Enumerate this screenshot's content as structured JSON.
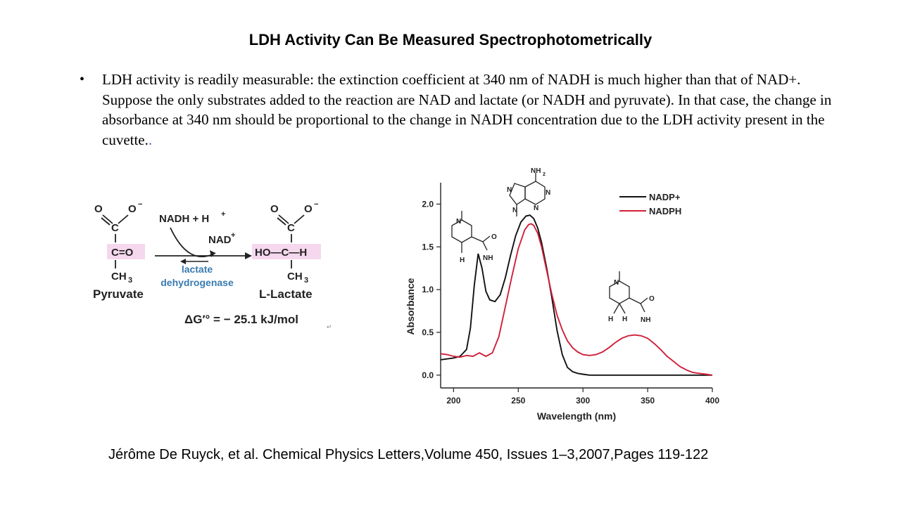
{
  "slide": {
    "title": "LDH Activity Can Be Measured Spectrophotometrically",
    "bullet_text": "LDH activity is readily measurable: the extinction coefficient at 340 nm of NADH is much higher than that of NAD+. Suppose the only substrates added to the reaction are NAD and lactate (or NADH and pyruvate). In that case, the change in absorbance at 340 nm should be proportional to the change in NADH concentration due to the LDH activity present in the cuvette.",
    "bullet_tail": ".",
    "citation": "Jérôme De Ruyck, et al.  Chemical Physics Letters,Volume 450, Issues 1–3,2007,Pages 119-122"
  },
  "reaction": {
    "substrate_name": "Pyruvate",
    "product_name": "L-Lactate",
    "cofactor_in": "NADH + H",
    "cofactor_out": "NAD",
    "enzyme_line1": "lactate",
    "enzyme_line2": "dehydrogenase",
    "delta_g": "ΔG′° = − 25.1 kJ/mol",
    "colors": {
      "highlight": "#f6d8ee",
      "enzyme": "#3a7bb0"
    }
  },
  "chart_data": {
    "type": "line",
    "xlabel": "Wavelength (nm)",
    "ylabel": "Absorbance",
    "xlim": [
      190,
      400
    ],
    "ylim": [
      -0.15,
      2.25
    ],
    "xticks": [
      200,
      250,
      300,
      350,
      400
    ],
    "yticks": [
      0.0,
      0.5,
      1.0,
      1.5,
      2.0
    ],
    "grid": false,
    "legend_position": "top-right",
    "series": [
      {
        "name": "NADP+",
        "color": "#111111",
        "x": [
          190,
          200,
          205,
          210,
          213,
          216,
          219,
          222,
          225,
          228,
          232,
          236,
          240,
          244,
          248,
          252,
          256,
          259,
          262,
          265,
          268,
          272,
          276,
          280,
          284,
          288,
          292,
          296,
          300,
          305,
          310,
          320,
          330,
          340,
          350,
          360,
          370,
          380,
          390,
          400
        ],
        "values": [
          0.18,
          0.2,
          0.22,
          0.3,
          0.55,
          1.05,
          1.42,
          1.25,
          0.98,
          0.88,
          0.86,
          0.94,
          1.14,
          1.4,
          1.63,
          1.79,
          1.86,
          1.87,
          1.83,
          1.72,
          1.55,
          1.25,
          0.9,
          0.52,
          0.24,
          0.09,
          0.04,
          0.02,
          0.01,
          0.0,
          0.0,
          0.0,
          0.0,
          0.0,
          0.0,
          0.0,
          0.0,
          0.0,
          0.0,
          0.0
        ]
      },
      {
        "name": "NADPH",
        "color": "#d0203a",
        "x": [
          190,
          195,
          200,
          205,
          210,
          215,
          220,
          225,
          230,
          235,
          240,
          245,
          250,
          255,
          258,
          260,
          262,
          265,
          268,
          272,
          276,
          280,
          284,
          288,
          292,
          296,
          300,
          305,
          310,
          315,
          320,
          325,
          330,
          335,
          340,
          345,
          350,
          355,
          360,
          365,
          370,
          375,
          380,
          385,
          390,
          395,
          400
        ],
        "values": [
          0.25,
          0.24,
          0.22,
          0.21,
          0.23,
          0.22,
          0.26,
          0.22,
          0.26,
          0.45,
          0.8,
          1.15,
          1.48,
          1.7,
          1.76,
          1.77,
          1.75,
          1.66,
          1.5,
          1.22,
          0.94,
          0.7,
          0.53,
          0.4,
          0.32,
          0.27,
          0.24,
          0.23,
          0.24,
          0.27,
          0.32,
          0.38,
          0.43,
          0.46,
          0.47,
          0.46,
          0.43,
          0.37,
          0.3,
          0.22,
          0.16,
          0.1,
          0.06,
          0.03,
          0.02,
          0.01,
          0.0
        ]
      }
    ]
  }
}
